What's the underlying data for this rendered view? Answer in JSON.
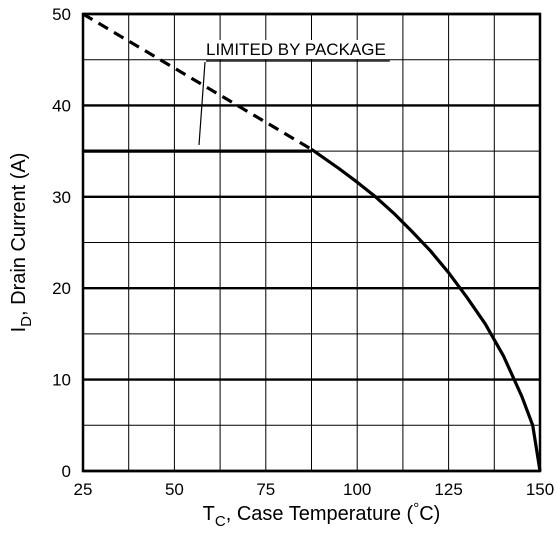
{
  "chart_data": {
    "type": "line",
    "xlabel": {
      "main": "T",
      "sub": "C",
      "rest": ", Case Temperature  (",
      "deg": "°",
      "unit": "C)"
    },
    "ylabel": {
      "main": "I",
      "sub": "D",
      "rest": ", Drain Current (A)"
    },
    "xlim": [
      25,
      150
    ],
    "ylim": [
      0,
      50
    ],
    "x_ticks": [
      25,
      50,
      75,
      100,
      125,
      150
    ],
    "y_ticks": [
      0,
      10,
      20,
      30,
      40,
      50
    ],
    "x_ticks_minor": [
      37.5,
      62.5,
      87.5,
      112.5,
      137.5
    ],
    "y_ticks_minor": [
      5,
      15,
      25,
      35,
      45
    ],
    "grid": true,
    "annotation": "LIMITED BY PACKAGE",
    "series": [
      {
        "style": "solid",
        "x": [
          25,
          87.5
        ],
        "y": [
          35,
          35
        ]
      },
      {
        "style": "dashed",
        "x": [
          25,
          87.5
        ],
        "y": [
          50,
          35.2
        ]
      },
      {
        "style": "solid",
        "x": [
          87.5,
          95,
          100,
          105,
          110,
          115,
          120,
          125,
          130,
          135,
          140,
          145,
          148,
          150
        ],
        "y": [
          35.2,
          33.1,
          31.6,
          30.0,
          28.2,
          26.2,
          24.1,
          21.7,
          19.0,
          16.1,
          12.6,
          8.2,
          5.0,
          0
        ]
      }
    ]
  }
}
